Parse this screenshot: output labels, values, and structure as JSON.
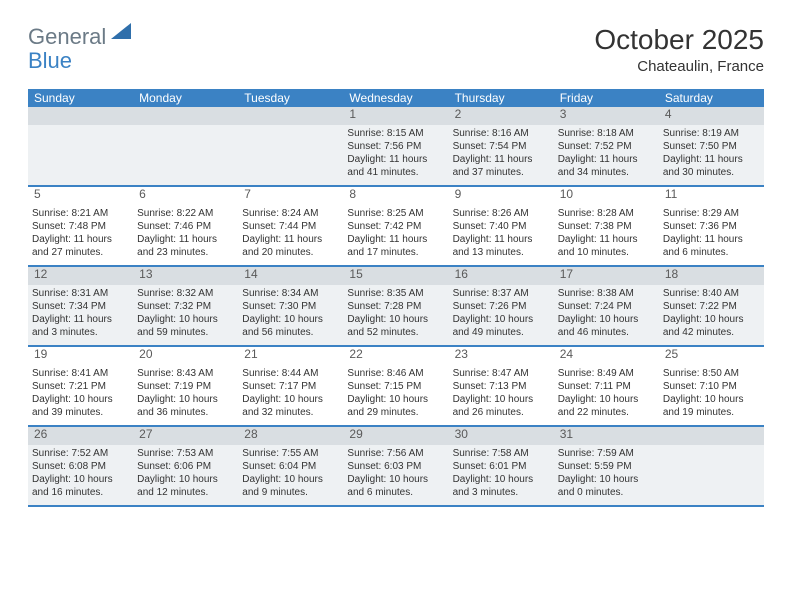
{
  "logo": {
    "text1": "General",
    "text2": "Blue",
    "triangle_color": "#2f6fab"
  },
  "title": "October 2025",
  "location": "Chateaulin, France",
  "weekdays": [
    "Sunday",
    "Monday",
    "Tuesday",
    "Wednesday",
    "Thursday",
    "Friday",
    "Saturday"
  ],
  "colors": {
    "header_bg": "#3b82c4",
    "shaded_bg": "#eef1f3",
    "daynum_shaded_bg": "#d9dee2",
    "border": "#3b82c4",
    "text": "#333333",
    "logo_gray": "#6b7a86",
    "logo_blue": "#3b82c4"
  },
  "weeks": [
    [
      {
        "n": "",
        "empty": true
      },
      {
        "n": "",
        "empty": true
      },
      {
        "n": "",
        "empty": true
      },
      {
        "n": "1",
        "sunrise": "8:15 AM",
        "sunset": "7:56 PM",
        "daylight": "11 hours and 41 minutes."
      },
      {
        "n": "2",
        "sunrise": "8:16 AM",
        "sunset": "7:54 PM",
        "daylight": "11 hours and 37 minutes."
      },
      {
        "n": "3",
        "sunrise": "8:18 AM",
        "sunset": "7:52 PM",
        "daylight": "11 hours and 34 minutes."
      },
      {
        "n": "4",
        "sunrise": "8:19 AM",
        "sunset": "7:50 PM",
        "daylight": "11 hours and 30 minutes."
      }
    ],
    [
      {
        "n": "5",
        "sunrise": "8:21 AM",
        "sunset": "7:48 PM",
        "daylight": "11 hours and 27 minutes."
      },
      {
        "n": "6",
        "sunrise": "8:22 AM",
        "sunset": "7:46 PM",
        "daylight": "11 hours and 23 minutes."
      },
      {
        "n": "7",
        "sunrise": "8:24 AM",
        "sunset": "7:44 PM",
        "daylight": "11 hours and 20 minutes."
      },
      {
        "n": "8",
        "sunrise": "8:25 AM",
        "sunset": "7:42 PM",
        "daylight": "11 hours and 17 minutes."
      },
      {
        "n": "9",
        "sunrise": "8:26 AM",
        "sunset": "7:40 PM",
        "daylight": "11 hours and 13 minutes."
      },
      {
        "n": "10",
        "sunrise": "8:28 AM",
        "sunset": "7:38 PM",
        "daylight": "11 hours and 10 minutes."
      },
      {
        "n": "11",
        "sunrise": "8:29 AM",
        "sunset": "7:36 PM",
        "daylight": "11 hours and 6 minutes."
      }
    ],
    [
      {
        "n": "12",
        "sunrise": "8:31 AM",
        "sunset": "7:34 PM",
        "daylight": "11 hours and 3 minutes."
      },
      {
        "n": "13",
        "sunrise": "8:32 AM",
        "sunset": "7:32 PM",
        "daylight": "10 hours and 59 minutes."
      },
      {
        "n": "14",
        "sunrise": "8:34 AM",
        "sunset": "7:30 PM",
        "daylight": "10 hours and 56 minutes."
      },
      {
        "n": "15",
        "sunrise": "8:35 AM",
        "sunset": "7:28 PM",
        "daylight": "10 hours and 52 minutes."
      },
      {
        "n": "16",
        "sunrise": "8:37 AM",
        "sunset": "7:26 PM",
        "daylight": "10 hours and 49 minutes."
      },
      {
        "n": "17",
        "sunrise": "8:38 AM",
        "sunset": "7:24 PM",
        "daylight": "10 hours and 46 minutes."
      },
      {
        "n": "18",
        "sunrise": "8:40 AM",
        "sunset": "7:22 PM",
        "daylight": "10 hours and 42 minutes."
      }
    ],
    [
      {
        "n": "19",
        "sunrise": "8:41 AM",
        "sunset": "7:21 PM",
        "daylight": "10 hours and 39 minutes."
      },
      {
        "n": "20",
        "sunrise": "8:43 AM",
        "sunset": "7:19 PM",
        "daylight": "10 hours and 36 minutes."
      },
      {
        "n": "21",
        "sunrise": "8:44 AM",
        "sunset": "7:17 PM",
        "daylight": "10 hours and 32 minutes."
      },
      {
        "n": "22",
        "sunrise": "8:46 AM",
        "sunset": "7:15 PM",
        "daylight": "10 hours and 29 minutes."
      },
      {
        "n": "23",
        "sunrise": "8:47 AM",
        "sunset": "7:13 PM",
        "daylight": "10 hours and 26 minutes."
      },
      {
        "n": "24",
        "sunrise": "8:49 AM",
        "sunset": "7:11 PM",
        "daylight": "10 hours and 22 minutes."
      },
      {
        "n": "25",
        "sunrise": "8:50 AM",
        "sunset": "7:10 PM",
        "daylight": "10 hours and 19 minutes."
      }
    ],
    [
      {
        "n": "26",
        "sunrise": "7:52 AM",
        "sunset": "6:08 PM",
        "daylight": "10 hours and 16 minutes."
      },
      {
        "n": "27",
        "sunrise": "7:53 AM",
        "sunset": "6:06 PM",
        "daylight": "10 hours and 12 minutes."
      },
      {
        "n": "28",
        "sunrise": "7:55 AM",
        "sunset": "6:04 PM",
        "daylight": "10 hours and 9 minutes."
      },
      {
        "n": "29",
        "sunrise": "7:56 AM",
        "sunset": "6:03 PM",
        "daylight": "10 hours and 6 minutes."
      },
      {
        "n": "30",
        "sunrise": "7:58 AM",
        "sunset": "6:01 PM",
        "daylight": "10 hours and 3 minutes."
      },
      {
        "n": "31",
        "sunrise": "7:59 AM",
        "sunset": "5:59 PM",
        "daylight": "10 hours and 0 minutes."
      },
      {
        "n": "",
        "empty": true
      }
    ]
  ]
}
